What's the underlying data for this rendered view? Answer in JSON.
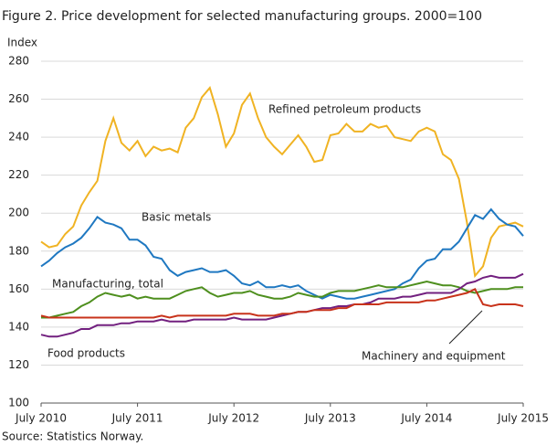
{
  "chart_data": {
    "type": "line",
    "title": "Figure 2. Price development for selected manufacturing groups. 2000=100",
    "y_label": "Index",
    "source": "Source: Statistics Norway.",
    "categories": [
      "July 2010",
      null,
      null,
      null,
      null,
      null,
      null,
      null,
      null,
      null,
      null,
      null,
      "July 2011",
      null,
      null,
      null,
      null,
      null,
      null,
      null,
      null,
      null,
      null,
      null,
      "July 2012",
      null,
      null,
      null,
      null,
      null,
      null,
      null,
      null,
      null,
      null,
      null,
      "July 2013",
      null,
      null,
      null,
      null,
      null,
      null,
      null,
      null,
      null,
      null,
      null,
      "July 2014",
      null,
      null,
      null,
      null,
      null,
      null,
      null,
      null,
      null,
      null,
      null,
      "July 2015"
    ],
    "ylim": [
      100,
      280
    ],
    "yticks": [
      100,
      120,
      140,
      160,
      180,
      200,
      220,
      240,
      260,
      280
    ],
    "grid": true,
    "series": [
      {
        "name": "Refined petroleum products",
        "color": "#f0b323",
        "values": [
          185,
          182,
          183,
          189,
          193,
          204,
          211,
          217,
          238,
          250,
          237,
          233,
          238,
          230,
          235,
          233,
          234,
          232,
          245,
          250,
          261,
          266,
          252,
          235,
          242,
          257,
          263,
          250,
          240,
          235,
          231,
          236,
          241,
          235,
          227,
          228,
          241,
          242,
          247,
          243,
          243,
          247,
          245,
          246,
          240,
          239,
          238,
          243,
          245,
          243,
          231,
          228,
          218,
          195,
          167,
          172,
          187,
          193,
          194,
          195,
          193
        ]
      },
      {
        "name": "Basic metals",
        "color": "#1f78c1",
        "values": [
          172,
          175,
          179,
          182,
          184,
          187,
          192,
          198,
          195,
          194,
          192,
          186,
          186,
          183,
          177,
          176,
          170,
          167,
          169,
          170,
          171,
          169,
          169,
          170,
          167,
          163,
          162,
          164,
          161,
          161,
          162,
          161,
          162,
          159,
          157,
          155,
          157,
          156,
          155,
          155,
          156,
          157,
          158,
          159,
          160,
          163,
          165,
          171,
          175,
          176,
          181,
          181,
          185,
          192,
          199,
          197,
          202,
          197,
          194,
          193,
          188
        ]
      },
      {
        "name": "Manufacturing, total",
        "color": "#4e8f1e",
        "values": [
          145,
          145,
          146,
          147,
          148,
          151,
          153,
          156,
          158,
          157,
          156,
          157,
          155,
          156,
          155,
          155,
          155,
          157,
          159,
          160,
          161,
          158,
          156,
          157,
          158,
          158,
          159,
          157,
          156,
          155,
          155,
          156,
          158,
          157,
          156,
          156,
          158,
          159,
          159,
          159,
          160,
          161,
          162,
          161,
          161,
          161,
          162,
          163,
          164,
          163,
          162,
          162,
          161,
          159,
          158,
          159,
          160,
          160,
          160,
          161,
          161
        ]
      },
      {
        "name": "Food products",
        "color": "#72207f",
        "values": [
          136,
          135,
          135,
          136,
          137,
          139,
          139,
          141,
          141,
          141,
          142,
          142,
          143,
          143,
          143,
          144,
          143,
          143,
          143,
          144,
          144,
          144,
          144,
          144,
          145,
          144,
          144,
          144,
          144,
          145,
          146,
          147,
          148,
          148,
          149,
          150,
          150,
          151,
          151,
          152,
          152,
          153,
          155,
          155,
          155,
          156,
          156,
          157,
          158,
          158,
          158,
          158,
          160,
          163,
          164,
          166,
          167,
          166,
          166,
          166,
          168
        ]
      },
      {
        "name": "Machinery and equipment",
        "color": "#c8331b",
        "values": [
          146,
          145,
          145,
          145,
          145,
          145,
          145,
          145,
          145,
          145,
          145,
          145,
          145,
          145,
          145,
          146,
          145,
          146,
          146,
          146,
          146,
          146,
          146,
          146,
          147,
          147,
          147,
          146,
          146,
          146,
          147,
          147,
          148,
          148,
          149,
          149,
          149,
          150,
          150,
          152,
          152,
          152,
          152,
          153,
          153,
          153,
          153,
          153,
          154,
          154,
          155,
          156,
          157,
          158,
          160,
          152,
          151,
          152,
          152,
          152,
          151
        ]
      }
    ]
  }
}
